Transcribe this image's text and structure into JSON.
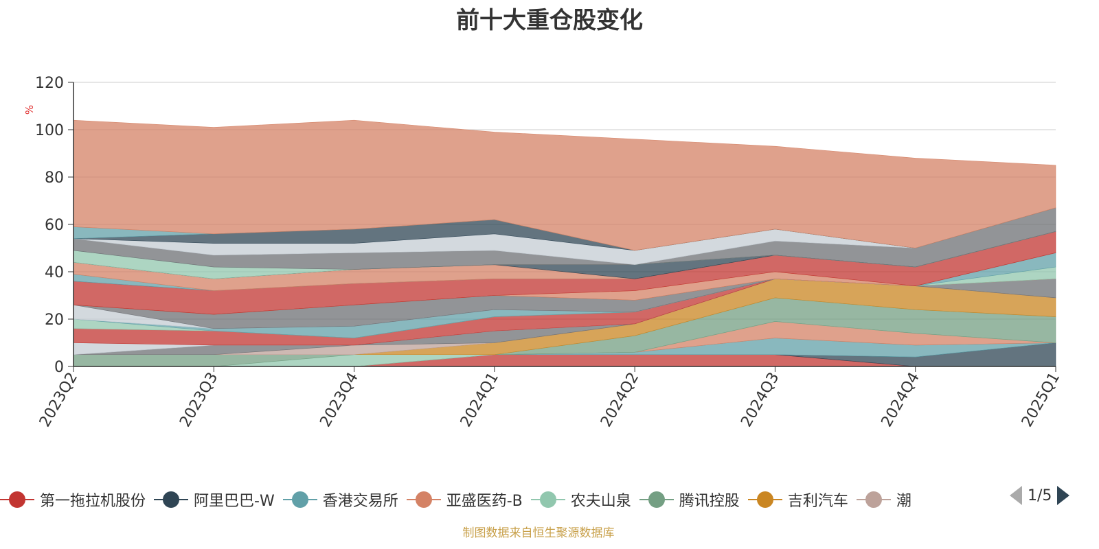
{
  "title": "前十大重仓股变化",
  "source_note": "制图数据来自恒生聚源数据库",
  "pager": "1/5",
  "chart_data": {
    "type": "area",
    "stacked": true,
    "ylabel": "%",
    "ylim": [
      0,
      120
    ],
    "yticks": [
      0,
      20,
      40,
      60,
      80,
      100,
      120
    ],
    "categories": [
      "2023Q2",
      "2023Q3",
      "2023Q4",
      "2024Q1",
      "2024Q2",
      "2024Q3",
      "2024Q4",
      "2025Q1"
    ],
    "grid": true,
    "series": [
      {
        "name": "第一拖拉机股份",
        "color": "#c23531",
        "values": [
          0,
          0,
          0,
          5,
          5,
          5,
          0,
          0
        ]
      },
      {
        "name": "阿里巴巴-W",
        "color": "#2f4554",
        "values": [
          0,
          0,
          0,
          0,
          0,
          0,
          4,
          10
        ]
      },
      {
        "name": "香港交易所",
        "color": "#61a0a8",
        "values": [
          0,
          0,
          0,
          0,
          1,
          7,
          5,
          0
        ]
      },
      {
        "name": "亚盛医药-B",
        "color": "#d48265",
        "values": [
          0,
          0,
          0,
          0,
          0,
          7,
          5,
          0
        ]
      },
      {
        "name": "农夫山泉",
        "color": "#91c7ae",
        "values": [
          0,
          0,
          5,
          0,
          0,
          0,
          0,
          0
        ]
      },
      {
        "name": "腾讯控股",
        "color": "#749f83",
        "values": [
          5,
          5,
          0,
          0,
          7,
          10,
          10,
          11
        ]
      },
      {
        "name": "吉利汽车",
        "color": "#ca8622",
        "values": [
          0,
          0,
          0,
          5,
          5,
          8,
          10,
          8
        ]
      },
      {
        "name": "潮",
        "color": "#bda29a",
        "values": [
          0,
          0,
          4,
          0,
          0,
          0,
          0,
          0
        ]
      },
      {
        "name": "",
        "color": "#6e7074",
        "values": [
          0,
          4,
          0,
          5,
          0,
          0,
          0,
          8
        ]
      },
      {
        "name": "",
        "color": "#c4ccd3",
        "values": [
          5,
          0,
          0,
          0,
          0,
          0,
          0,
          0
        ]
      },
      {
        "name": "",
        "color": "#c23531",
        "values": [
          6,
          6,
          3,
          6,
          5,
          0,
          0,
          0
        ]
      },
      {
        "name": "",
        "color": "#91c7ae",
        "values": [
          4,
          0,
          0,
          0,
          0,
          0,
          0,
          5
        ]
      },
      {
        "name": "",
        "color": "#61a0a8",
        "values": [
          0,
          1,
          5,
          3,
          0,
          0,
          0,
          6
        ]
      },
      {
        "name": "",
        "color": "#c4ccd3",
        "values": [
          6,
          0,
          0,
          0,
          0,
          0,
          0,
          0
        ]
      },
      {
        "name": "",
        "color": "#6e7074",
        "values": [
          0,
          6,
          9,
          6,
          5,
          0,
          0,
          0
        ]
      },
      {
        "name": "",
        "color": "#d48265",
        "values": [
          0,
          0,
          0,
          0,
          4,
          3,
          0,
          0
        ]
      },
      {
        "name": "",
        "color": "#c23531",
        "values": [
          10,
          10,
          9,
          7,
          5,
          7,
          8,
          9
        ]
      },
      {
        "name": "",
        "color": "#61a0a8",
        "values": [
          3,
          0,
          0,
          0,
          0,
          0,
          0,
          0
        ]
      },
      {
        "name": "",
        "color": "#d48265",
        "values": [
          5,
          5,
          6,
          6,
          0,
          0,
          0,
          0
        ]
      },
      {
        "name": "",
        "color": "#2f4554",
        "values": [
          0,
          0,
          0,
          0,
          6,
          0,
          0,
          0
        ]
      },
      {
        "name": "",
        "color": "#91c7ae",
        "values": [
          5,
          5,
          0,
          0,
          0,
          0,
          0,
          0
        ]
      },
      {
        "name": "",
        "color": "#6e7074",
        "values": [
          5,
          5,
          7,
          6,
          0,
          6,
          8,
          10
        ]
      },
      {
        "name": "",
        "color": "#c4ccd3",
        "values": [
          0,
          5,
          4,
          7,
          6,
          5,
          0,
          0
        ]
      },
      {
        "name": "",
        "color": "#2f4554",
        "values": [
          0,
          4,
          6,
          6,
          0,
          0,
          0,
          0
        ]
      },
      {
        "name": "",
        "color": "#61a0a8",
        "values": [
          5,
          0,
          0,
          0,
          0,
          0,
          0,
          0
        ]
      },
      {
        "name": "",
        "color": "#d48265",
        "values": [
          45,
          45,
          46,
          37,
          47,
          35,
          38,
          18
        ]
      }
    ]
  }
}
